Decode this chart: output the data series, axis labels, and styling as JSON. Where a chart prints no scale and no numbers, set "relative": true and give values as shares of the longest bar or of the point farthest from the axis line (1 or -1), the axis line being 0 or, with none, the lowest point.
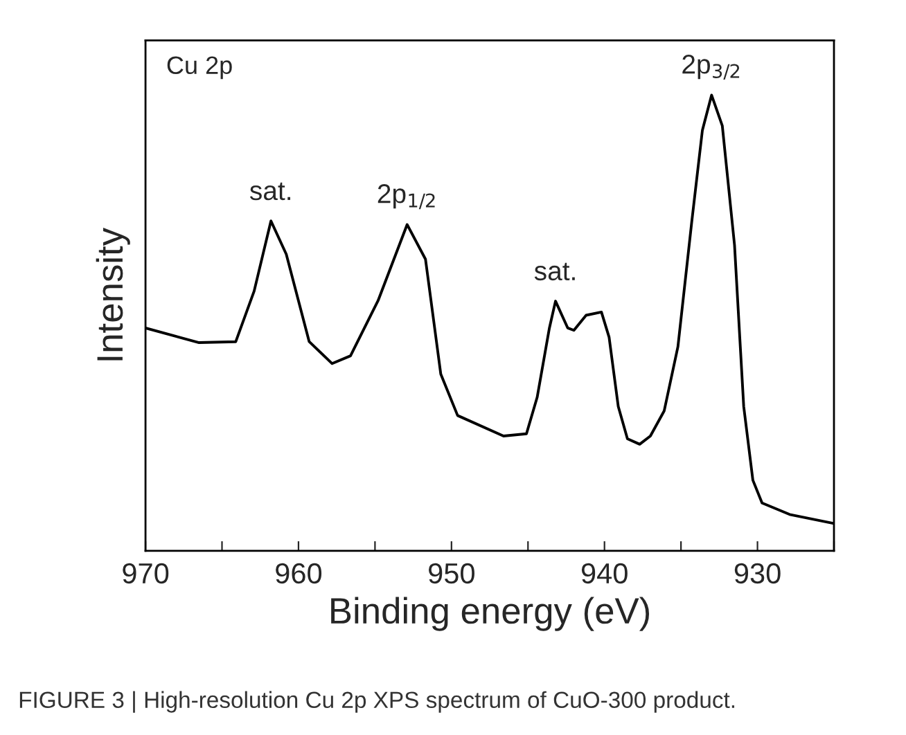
{
  "chart_data": {
    "type": "line",
    "relative": true,
    "xlabel": "Binding energy (eV)",
    "ylabel": "Intensity",
    "color": "#000000",
    "xlim": [
      970,
      925
    ],
    "xticks": [
      970,
      {
        "value": 965,
        "label": null
      },
      960,
      {
        "value": 955,
        "label": null
      },
      950,
      {
        "value": 945,
        "label": null
      },
      940,
      {
        "value": 935,
        "label": null
      },
      930,
      {
        "value": 925,
        "label": null
      }
    ],
    "x": [
      970,
      966.5,
      964.1,
      962.9,
      961.8,
      960.8,
      959.3,
      957.8,
      956.6,
      954.8,
      952.9,
      951.7,
      950.7,
      949.6,
      946.6,
      945.1,
      944.4,
      943.6,
      943.2,
      942.4,
      942.0,
      941.2,
      940.2,
      939.7,
      939.1,
      938.5,
      937.7,
      937.0,
      936.1,
      935.2,
      934.3,
      933.6,
      933.0,
      932.3,
      931.5,
      930.9,
      930.3,
      929.7,
      927.9,
      925.0
    ],
    "values": [
      0.489,
      0.457,
      0.459,
      0.57,
      0.724,
      0.651,
      0.459,
      0.411,
      0.428,
      0.549,
      0.716,
      0.64,
      0.388,
      0.297,
      0.252,
      0.257,
      0.337,
      0.489,
      0.548,
      0.489,
      0.484,
      0.517,
      0.524,
      0.469,
      0.317,
      0.246,
      0.234,
      0.252,
      0.307,
      0.448,
      0.721,
      0.923,
      1.0,
      0.933,
      0.671,
      0.317,
      0.155,
      0.105,
      0.08,
      0.06
    ],
    "annotations": [
      "Cu 2p",
      {
        "text": "sat.",
        "x": 961.8,
        "y": 0.724
      },
      {
        "text": "2p$_{1/2}$",
        "x": 952.9,
        "y": 0.716
      },
      {
        "text": "sat.",
        "x": 943.2,
        "y": 0.548
      },
      {
        "text": "2p$_{3/2}$",
        "x": 933.0,
        "y": 1.0
      },
      "FIGURE 3 | High-resolution Cu 2p XPS spectrum of CuO-300 product."
    ]
  }
}
